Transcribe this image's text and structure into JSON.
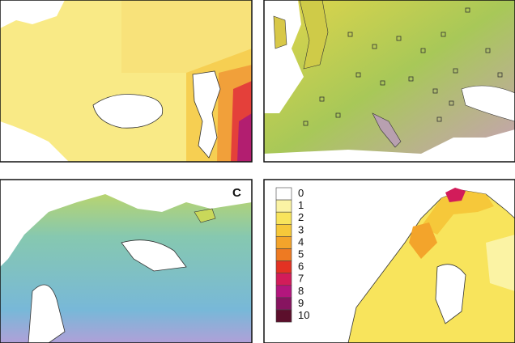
{
  "panels": [
    {
      "label": "C"
    }
  ],
  "legend": {
    "entries": [
      {
        "label": "0",
        "color": "#ffffff"
      },
      {
        "label": "1",
        "color": "#fbf3a4"
      },
      {
        "label": "2",
        "color": "#f8e45c"
      },
      {
        "label": "3",
        "color": "#f6c83a"
      },
      {
        "label": "4",
        "color": "#f3a42b"
      },
      {
        "label": "5",
        "color": "#ee7a22"
      },
      {
        "label": "6",
        "color": "#e33223"
      },
      {
        "label": "7",
        "color": "#d21c5a"
      },
      {
        "label": "8",
        "color": "#b3167d"
      },
      {
        "label": "9",
        "color": "#871460"
      },
      {
        "label": "10",
        "color": "#5c0f2c"
      }
    ]
  }
}
